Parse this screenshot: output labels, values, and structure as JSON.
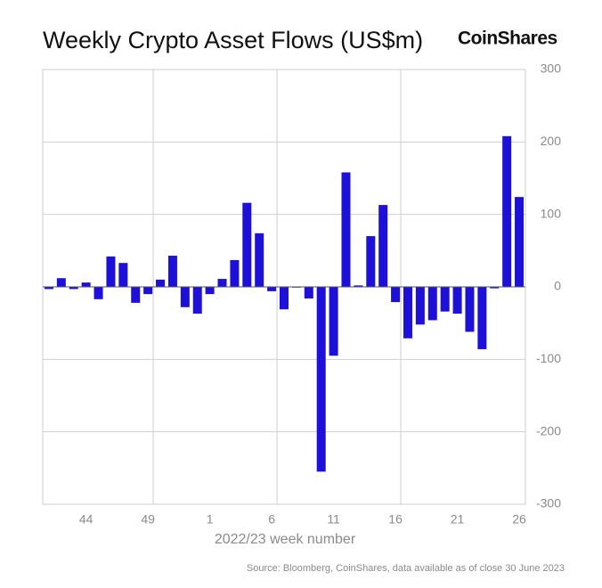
{
  "chart_data": {
    "type": "bar",
    "title": "Weekly Crypto Asset Flows (US$m)",
    "brand": "CoinShares",
    "x_label": "2022/23 week number",
    "source": "Source: Bloomberg, CoinShares, data available as of close 30 June 2023",
    "categories": [
      null,
      null,
      null,
      "44",
      null,
      null,
      null,
      null,
      "49",
      null,
      null,
      null,
      null,
      "1",
      null,
      null,
      null,
      null,
      "6",
      null,
      null,
      null,
      null,
      "11",
      null,
      null,
      null,
      null,
      "16",
      null,
      null,
      null,
      null,
      "21",
      null,
      null,
      null,
      null,
      "26"
    ],
    "values": [
      -3,
      12,
      -3,
      6,
      -17,
      42,
      33,
      -22,
      -10,
      10,
      43,
      -28,
      -37,
      -10,
      11,
      37,
      116,
      74,
      -6,
      -31,
      -1,
      -16,
      -255,
      -95,
      158,
      2,
      70,
      113,
      -21,
      -71,
      -52,
      -46,
      -34,
      -37,
      -62,
      -86,
      -2,
      208,
      124
    ],
    "color": "#1d10d8",
    "ylim": [
      -300,
      300
    ],
    "yticks": [
      300,
      200,
      100,
      0,
      -100,
      -200,
      -300
    ],
    "grid": true
  }
}
